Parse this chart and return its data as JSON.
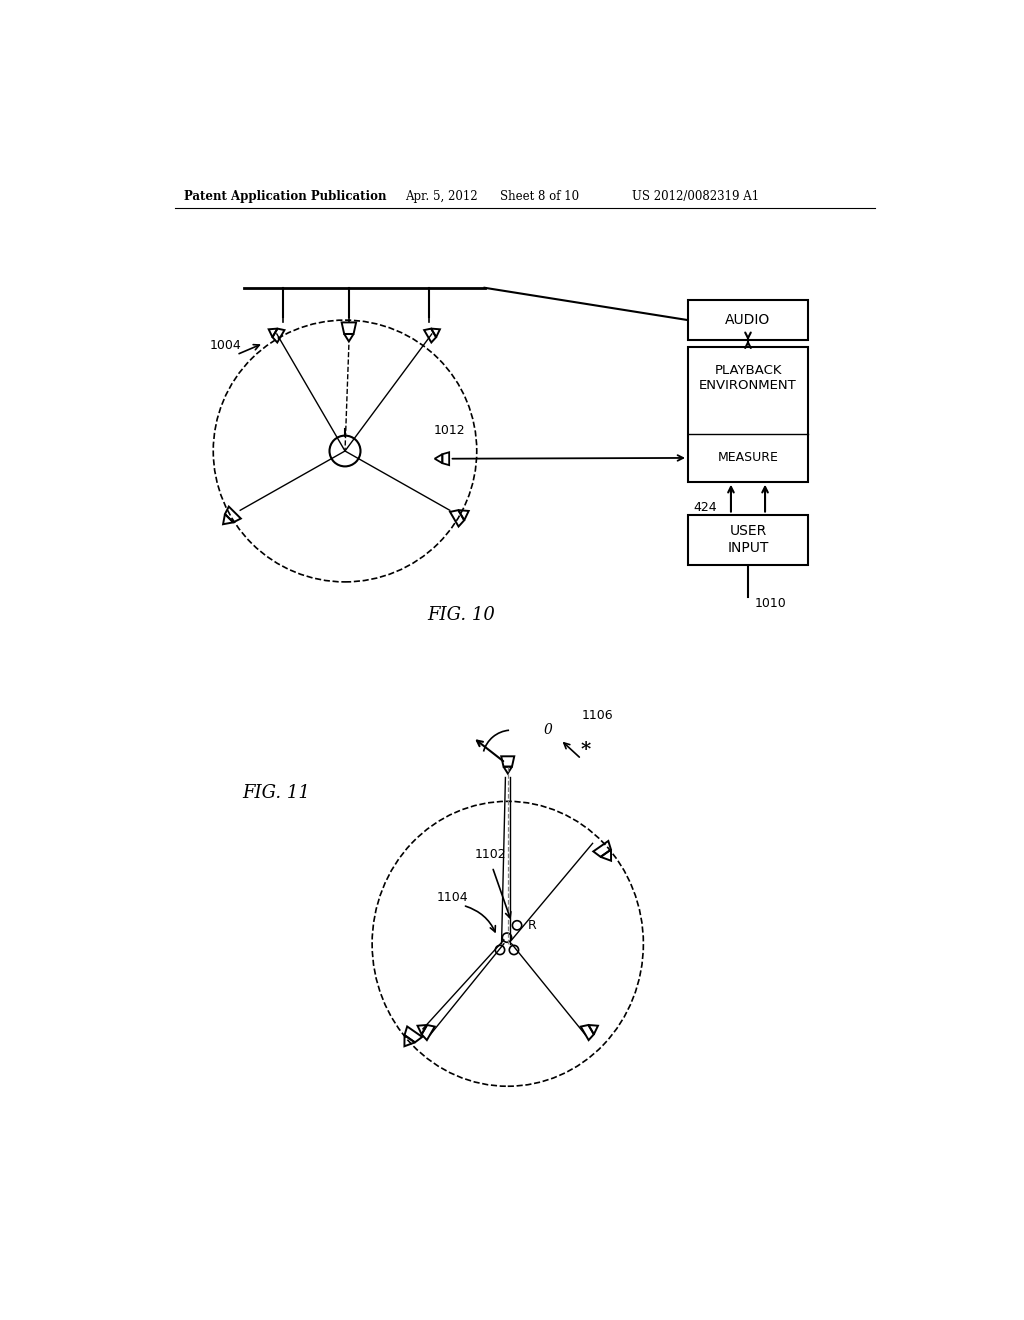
{
  "bg_color": "#ffffff",
  "header_text": "Patent Application Publication",
  "header_date": "Apr. 5, 2012",
  "header_sheet": "Sheet 8 of 10",
  "header_patent": "US 2012/0082319 A1",
  "fig10_label": "FIG. 10",
  "fig11_label": "FIG. 11",
  "box_audio": "AUDIO",
  "box_playback": "PLAYBACK\nENVIRONMENT",
  "box_measure": "MEASURE",
  "box_user": "USER\nINPUT",
  "label_1004": "1004",
  "label_1012": "1012",
  "label_424": "424",
  "label_1010": "1010",
  "label_1102": "1102",
  "label_1104": "1104",
  "label_1106": "1106",
  "label_R": "R",
  "label_theta": "0",
  "label_star": "*"
}
